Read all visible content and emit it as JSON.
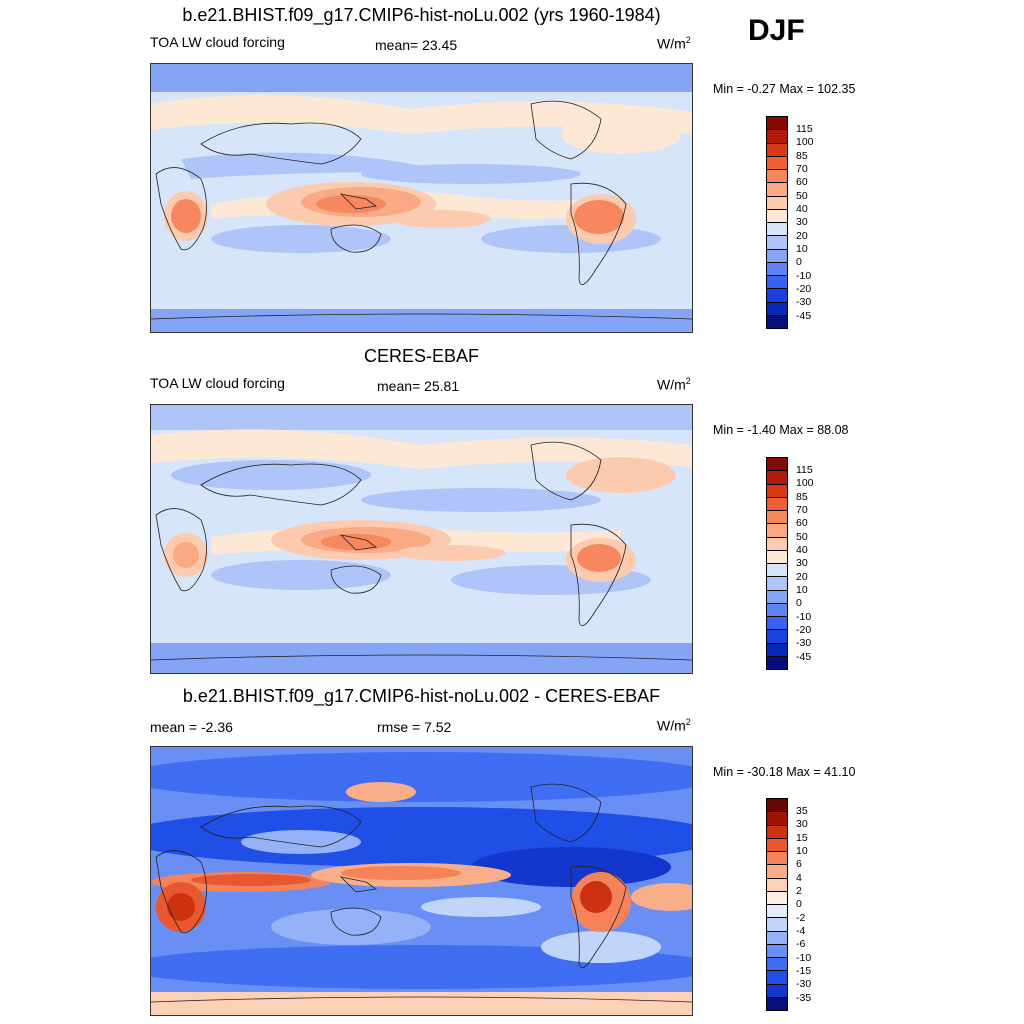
{
  "season": "DJF",
  "palette_abs": [
    "#060f7b",
    "#0a27b5",
    "#1941e0",
    "#3a62f0",
    "#5f82f3",
    "#86a4f5",
    "#afc4f8",
    "#d7e5fb",
    "#fde7d5",
    "#fccbaf",
    "#f9a984",
    "#f6875f",
    "#ef5f36",
    "#d8391b",
    "#b31a0b",
    "#820b02"
  ],
  "palette_diff": [
    "#06107a",
    "#0a23a6",
    "#1336cc",
    "#1f4fe6",
    "#3f6ef2",
    "#6a8ff4",
    "#95b1f7",
    "#c1d4fa",
    "#e6eefd",
    "#fdeee4",
    "#fcd1b6",
    "#f9ae8a",
    "#f4835a",
    "#e85730",
    "#cc3112",
    "#9e1305",
    "#6a0601"
  ],
  "panels": [
    {
      "id": "model",
      "title": "b.e21.BHIST.f09_g17.CMIP6-hist-noLu.002 (yrs 1960-1984)",
      "left_label": "TOA LW cloud forcing",
      "center_label": "mean=  23.45",
      "units": "W/m",
      "units_exp": "2",
      "minmax": "Min =  -0.27 Max = 102.35",
      "levels": [
        "115",
        "100",
        "85",
        "70",
        "60",
        "50",
        "40",
        "30",
        "20",
        "10",
        "0",
        "-10",
        "-20",
        "-30",
        "-45"
      ]
    },
    {
      "id": "obs",
      "title": "CERES-EBAF",
      "left_label": "TOA LW cloud forcing",
      "center_label": "mean=  25.81",
      "units": "W/m",
      "units_exp": "2",
      "minmax": "Min =  -1.40 Max =  88.08",
      "levels": [
        "115",
        "100",
        "85",
        "70",
        "60",
        "50",
        "40",
        "30",
        "20",
        "10",
        "0",
        "-10",
        "-20",
        "-30",
        "-45"
      ]
    },
    {
      "id": "diff",
      "title": "b.e21.BHIST.f09_g17.CMIP6-hist-noLu.002 - CERES-EBAF",
      "left_label": "mean =  -2.36",
      "center_label": "rmse =   7.52",
      "units": "W/m",
      "units_exp": "2",
      "minmax": "Min = -30.18 Max =  41.10",
      "levels": [
        "35",
        "30",
        "15",
        "10",
        "6",
        "4",
        "2",
        "0",
        "-2",
        "-4",
        "-6",
        "-10",
        "-15",
        "-30",
        "-35"
      ]
    }
  ]
}
